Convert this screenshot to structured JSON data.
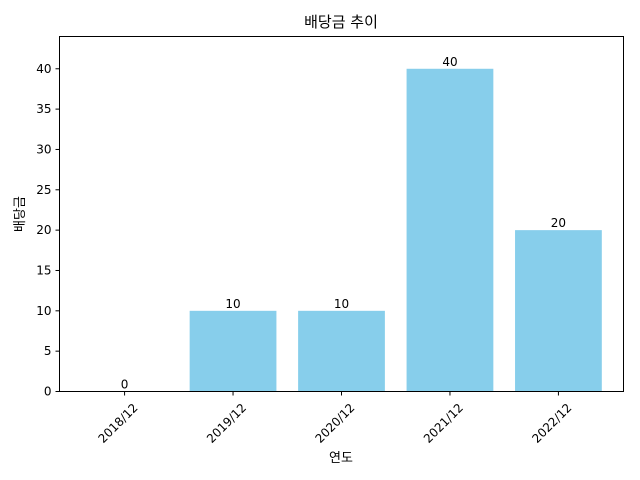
{
  "chart_data": {
    "type": "bar",
    "title": "배당금 추이",
    "xlabel": "연도",
    "ylabel": "배당금",
    "categories": [
      "2018/12",
      "2019/12",
      "2020/12",
      "2021/12",
      "2022/12"
    ],
    "values": [
      0,
      10,
      10,
      40,
      20
    ],
    "data_labels": [
      "0",
      "10",
      "10",
      "40",
      "20"
    ],
    "ylim": [
      0,
      44
    ],
    "yticks": [
      0,
      5,
      10,
      15,
      20,
      25,
      30,
      35,
      40
    ],
    "bar_color": "#87CEEB",
    "grid": false,
    "legend": "none"
  }
}
